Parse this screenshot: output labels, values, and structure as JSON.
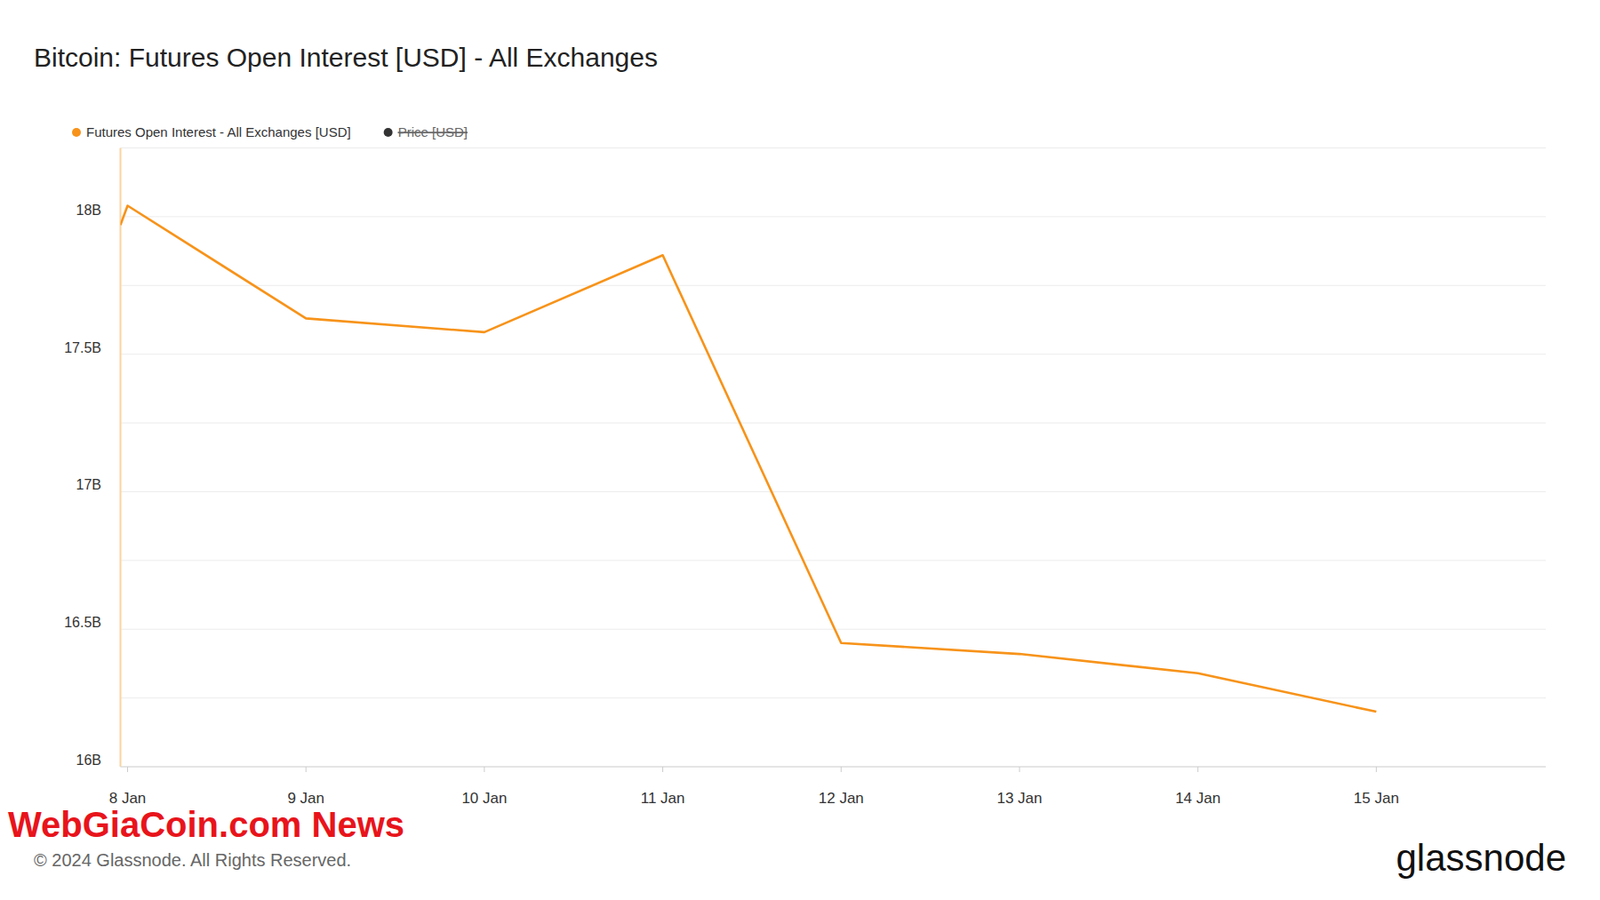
{
  "chart_data": {
    "type": "line",
    "title": "Bitcoin: Futures Open Interest [USD] - All Exchanges",
    "x": [
      7.96,
      8,
      9,
      10,
      11,
      12,
      13,
      14,
      15
    ],
    "xlim": [
      7.96,
      15.95
    ],
    "xticks": [
      {
        "value": 8,
        "label": "8 Jan"
      },
      {
        "value": 9,
        "label": "9 Jan"
      },
      {
        "value": 10,
        "label": "10 Jan"
      },
      {
        "value": 11,
        "label": "11 Jan"
      },
      {
        "value": 12,
        "label": "12 Jan"
      },
      {
        "value": 13,
        "label": "13 Jan"
      },
      {
        "value": 14,
        "label": "14 Jan"
      },
      {
        "value": 15,
        "label": "15 Jan"
      }
    ],
    "series": [
      {
        "name": "Futures Open Interest - All Exchanges [USD]",
        "color": "#f7931a",
        "values": [
          17.97,
          18.04,
          17.63,
          17.58,
          17.86,
          16.45,
          16.41,
          16.34,
          16.2
        ]
      },
      {
        "name": "Price [USD]",
        "color": "#333333",
        "values": [
          null,
          null,
          null,
          null,
          null,
          null,
          null,
          null,
          null
        ]
      }
    ],
    "ylim": [
      16,
      18.25
    ],
    "yticks": [
      {
        "value": 16,
        "label": "16B"
      },
      {
        "value": 16.5,
        "label": "16.5B"
      },
      {
        "value": 17,
        "label": "17B"
      },
      {
        "value": 17.5,
        "label": "17.5B"
      },
      {
        "value": 18,
        "label": "18B"
      }
    ],
    "minor_yticks": [
      16.25,
      16.75,
      17.25,
      17.75,
      18.25
    ],
    "grid": true,
    "legend": "top-left",
    "watermark": "WebGiaCoin.com News",
    "footer": "© 2024 Glassnode. All Rights Reserved.",
    "brand": "glassnode"
  }
}
